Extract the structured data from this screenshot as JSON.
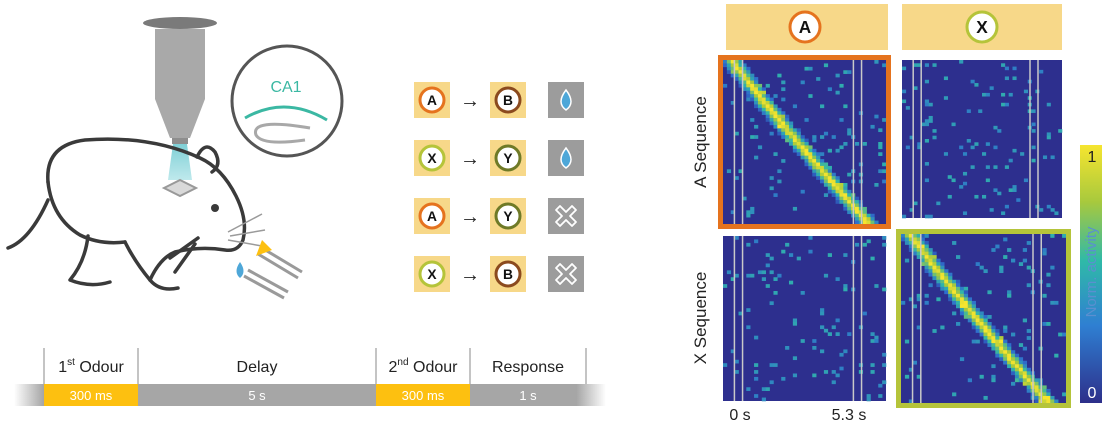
{
  "setup": {
    "region_label": "CA1"
  },
  "pairs": [
    {
      "first": "A",
      "second": "B",
      "outcome": "water-drop"
    },
    {
      "first": "X",
      "second": "Y",
      "outcome": "water-drop"
    },
    {
      "first": "A",
      "second": "Y",
      "outcome": "cross"
    },
    {
      "first": "X",
      "second": "B",
      "outcome": "cross"
    }
  ],
  "arrow_symbol": "→",
  "timeline": {
    "phases": [
      {
        "name": "1",
        "sup": "st",
        "rest": " Odour",
        "duration": "300 ms"
      },
      {
        "name": "Delay",
        "sup": "",
        "rest": "",
        "duration": "5 s"
      },
      {
        "name": "2",
        "sup": "nd",
        "rest": " Odour",
        "duration": "300 ms"
      },
      {
        "name": "Response",
        "sup": "",
        "rest": "",
        "duration": "1 s"
      }
    ]
  },
  "heatmap": {
    "col_headers": [
      "A",
      "X"
    ],
    "row_labels": [
      "A Sequence",
      "X Sequence"
    ],
    "time_start": "0 s",
    "time_end": "5.3 s",
    "colorbar_label": "Norm. activity",
    "colorbar_max": "1",
    "colorbar_min": "0"
  },
  "colors": {
    "odour_A": "#e5731e",
    "odour_X": "#b5c43a",
    "odour_B": "#8b4a1e",
    "odour_Y": "#6f7a27",
    "tile": "#f7d889",
    "stimulus": "#fdc010",
    "timeline_grey": "#a6a6a6",
    "heat_low": "#2c2f8c",
    "heat_high": "#f6e52f"
  }
}
